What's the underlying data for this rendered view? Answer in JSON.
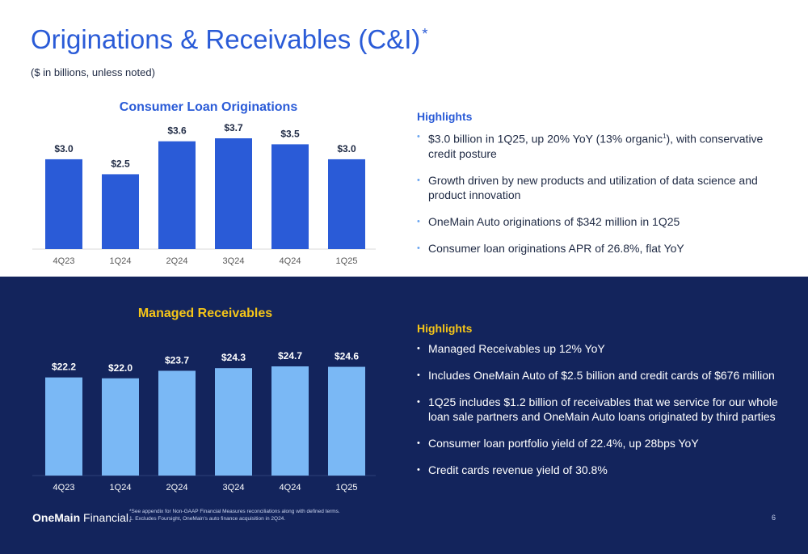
{
  "page": {
    "title": "Originations & Receivables (C&I)",
    "title_marker": "*",
    "subtitle": "($ in billions, unless noted)",
    "page_number": "6"
  },
  "logo": {
    "bold": "OneMain",
    "regular": " Financial."
  },
  "footnote": {
    "line1": "*See appendix for Non-GAAP Financial Measures reconciliations along with defined terms.",
    "line2": "1. Excludes Foursight, OneMain's auto finance acquisition in 2Q24."
  },
  "highlights_top": {
    "heading": "Highlights",
    "items": [
      {
        "text": "$3.0 billion in 1Q25, up 20% YoY (13% organic",
        "sup": "1",
        "tail": "), with conservative credit posture"
      },
      {
        "text": "Growth driven by new products and utilization of data science and product innovation"
      },
      {
        "text": "OneMain Auto originations of $342 million in 1Q25"
      },
      {
        "text": "Consumer loan originations APR of 26.8%, flat YoY"
      }
    ]
  },
  "highlights_bottom": {
    "heading": "Highlights",
    "items": [
      {
        "text": "Managed Receivables up 12% YoY"
      },
      {
        "text": "Includes OneMain Auto of $2.5 billion and credit cards of $676 million"
      },
      {
        "text": "1Q25 includes $1.2 billion of receivables that we service for our whole loan sale partners and OneMain Auto loans originated by third parties"
      },
      {
        "text": "Consumer loan portfolio yield of 22.4%, up 28bps YoY"
      },
      {
        "text": "Credit cards revenue yield of 30.8%"
      }
    ]
  },
  "colors": {
    "title_blue": "#2a5bd7",
    "bar_top": "#2a5bd7",
    "bar_bottom": "#7ab8f5",
    "navy": "#13245c",
    "gold": "#f5c518"
  },
  "chart_data": [
    {
      "type": "bar",
      "title": "Consumer Loan Originations",
      "categories": [
        "4Q23",
        "1Q24",
        "2Q24",
        "3Q24",
        "4Q24",
        "1Q25"
      ],
      "values": [
        3.0,
        2.5,
        3.6,
        3.7,
        3.5,
        3.0
      ],
      "labels": [
        "$3.0",
        "$2.5",
        "$3.6",
        "$3.7",
        "$3.5",
        "$3.0"
      ],
      "unit": "$ billions",
      "grid": false
    },
    {
      "type": "bar",
      "title": "Managed Receivables",
      "categories": [
        "4Q23",
        "1Q24",
        "2Q24",
        "3Q24",
        "4Q24",
        "1Q25"
      ],
      "values": [
        22.2,
        22.0,
        23.7,
        24.3,
        24.7,
        24.6
      ],
      "labels": [
        "$22.2",
        "$22.0",
        "$23.7",
        "$24.3",
        "$24.7",
        "$24.6"
      ],
      "unit": "$ billions",
      "grid": false
    }
  ]
}
